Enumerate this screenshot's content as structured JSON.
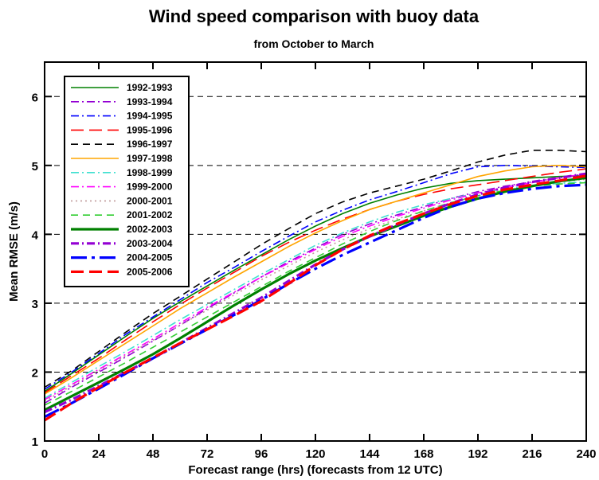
{
  "chart_data": {
    "type": "line",
    "title": "Wind speed comparison with buoy data",
    "subtitle": "from October to March",
    "xlabel": "Forecast range (hrs) (forecasts from 12 UTC)",
    "ylabel": "Mean RMSE (m/s)",
    "xlim": [
      0,
      240
    ],
    "ylim": [
      1,
      6.5
    ],
    "xticks": [
      "0",
      "24",
      "48",
      "72",
      "96",
      "120",
      "144",
      "168",
      "192",
      "216",
      "240"
    ],
    "yticks": [
      "1",
      "2",
      "3",
      "4",
      "5",
      "6"
    ],
    "grid": "horizontal dashed",
    "legend_position": "top-left",
    "x": [
      0,
      12,
      24,
      36,
      48,
      60,
      72,
      84,
      96,
      108,
      120,
      132,
      144,
      156,
      168,
      180,
      192,
      204,
      216,
      228,
      240
    ],
    "series": [
      {
        "name": "1992-1993",
        "color": "#008000",
        "dash": "solid",
        "width": 1.6,
        "values": [
          1.72,
          1.98,
          2.25,
          2.52,
          2.78,
          3.02,
          3.25,
          3.48,
          3.7,
          3.92,
          4.12,
          4.3,
          4.45,
          4.57,
          4.67,
          4.74,
          4.78,
          4.8,
          4.82,
          4.84,
          4.85
        ]
      },
      {
        "name": "1993-1994",
        "color": "#9400d3",
        "dash": "dashdot",
        "width": 1.6,
        "values": [
          1.55,
          1.78,
          2.0,
          2.22,
          2.45,
          2.68,
          2.92,
          3.15,
          3.38,
          3.6,
          3.8,
          4.0,
          4.15,
          4.28,
          4.4,
          4.52,
          4.62,
          4.7,
          4.76,
          4.82,
          4.88
        ]
      },
      {
        "name": "1994-1995",
        "color": "#0000ff",
        "dash": "dashdot",
        "width": 1.6,
        "values": [
          1.75,
          2.0,
          2.27,
          2.55,
          2.8,
          3.05,
          3.3,
          3.52,
          3.75,
          3.97,
          4.18,
          4.35,
          4.5,
          4.62,
          4.75,
          4.88,
          4.98,
          5.0,
          4.99,
          4.98,
          4.97
        ]
      },
      {
        "name": "1995-1996",
        "color": "#ff0000",
        "dash": "longdash",
        "width": 1.6,
        "values": [
          1.7,
          1.95,
          2.2,
          2.47,
          2.73,
          2.98,
          3.22,
          3.45,
          3.68,
          3.88,
          4.06,
          4.22,
          4.36,
          4.48,
          4.58,
          4.66,
          4.72,
          4.78,
          4.84,
          4.9,
          4.95
        ]
      },
      {
        "name": "1996-1997",
        "color": "#000000",
        "dash": "dashed",
        "width": 1.6,
        "values": [
          1.78,
          2.02,
          2.3,
          2.58,
          2.85,
          3.1,
          3.35,
          3.6,
          3.85,
          4.08,
          4.3,
          4.47,
          4.6,
          4.7,
          4.8,
          4.92,
          5.05,
          5.15,
          5.22,
          5.22,
          5.2
        ]
      },
      {
        "name": "1997-1998",
        "color": "#ffa500",
        "dash": "solid",
        "width": 1.6,
        "values": [
          1.68,
          1.92,
          2.17,
          2.42,
          2.67,
          2.92,
          3.15,
          3.38,
          3.6,
          3.82,
          4.02,
          4.2,
          4.36,
          4.48,
          4.6,
          4.72,
          4.84,
          4.92,
          4.98,
          5.0,
          4.98
        ]
      },
      {
        "name": "1998-1999",
        "color": "#40e0d0",
        "dash": "dashdot",
        "width": 1.6,
        "values": [
          1.62,
          1.85,
          2.08,
          2.3,
          2.53,
          2.76,
          2.98,
          3.2,
          3.42,
          3.63,
          3.84,
          4.02,
          4.18,
          4.32,
          4.43,
          4.52,
          4.6,
          4.66,
          4.71,
          4.74,
          4.76
        ]
      },
      {
        "name": "1999-2000",
        "color": "#ff00ff",
        "dash": "dashdot",
        "width": 1.6,
        "values": [
          1.6,
          1.82,
          2.04,
          2.26,
          2.48,
          2.71,
          2.94,
          3.16,
          3.38,
          3.58,
          3.78,
          3.97,
          4.12,
          4.26,
          4.38,
          4.5,
          4.6,
          4.68,
          4.75,
          4.82,
          4.88
        ]
      },
      {
        "name": "2000-2001",
        "color": "#c09a9a",
        "dash": "dotted",
        "width": 1.6,
        "values": [
          1.58,
          1.8,
          2.02,
          2.24,
          2.46,
          2.68,
          2.9,
          3.12,
          3.34,
          3.54,
          3.74,
          3.92,
          4.08,
          4.22,
          4.34,
          4.46,
          4.56,
          4.64,
          4.7,
          4.76,
          4.8
        ]
      },
      {
        "name": "2001-2002",
        "color": "#32cd32",
        "dash": "dashed",
        "width": 1.6,
        "values": [
          1.52,
          1.72,
          1.93,
          2.14,
          2.36,
          2.58,
          2.8,
          3.02,
          3.24,
          3.46,
          3.66,
          3.86,
          4.04,
          4.2,
          4.34,
          4.46,
          4.56,
          4.64,
          4.7,
          4.73,
          4.75
        ]
      },
      {
        "name": "2002-2003",
        "color": "#008000",
        "dash": "solid",
        "width": 3.2,
        "values": [
          1.45,
          1.65,
          1.85,
          2.05,
          2.26,
          2.49,
          2.73,
          2.97,
          3.2,
          3.42,
          3.62,
          3.8,
          3.97,
          4.12,
          4.27,
          4.4,
          4.52,
          4.62,
          4.7,
          4.77,
          4.82
        ]
      },
      {
        "name": "2003-2004",
        "color": "#9400d3",
        "dash": "dashdot",
        "width": 3.2,
        "values": [
          1.42,
          1.6,
          1.8,
          2.0,
          2.2,
          2.42,
          2.64,
          2.86,
          3.08,
          3.32,
          3.56,
          3.78,
          3.97,
          4.14,
          4.3,
          4.45,
          4.58,
          4.68,
          4.76,
          4.82,
          4.88
        ]
      },
      {
        "name": "2004-2005",
        "color": "#0000ff",
        "dash": "longdashdot",
        "width": 3.2,
        "values": [
          1.35,
          1.55,
          1.76,
          1.98,
          2.2,
          2.41,
          2.62,
          2.83,
          3.05,
          3.28,
          3.5,
          3.7,
          3.88,
          4.06,
          4.24,
          4.4,
          4.52,
          4.6,
          4.66,
          4.7,
          4.72
        ]
      },
      {
        "name": "2005-2006",
        "color": "#ff0000",
        "dash": "longdash",
        "width": 3.2,
        "values": [
          1.3,
          1.55,
          1.78,
          2.0,
          2.21,
          2.42,
          2.62,
          2.82,
          3.03,
          3.28,
          3.55,
          3.78,
          3.98,
          4.15,
          4.3,
          4.44,
          4.56,
          4.65,
          4.72,
          4.78,
          4.85
        ]
      }
    ]
  }
}
